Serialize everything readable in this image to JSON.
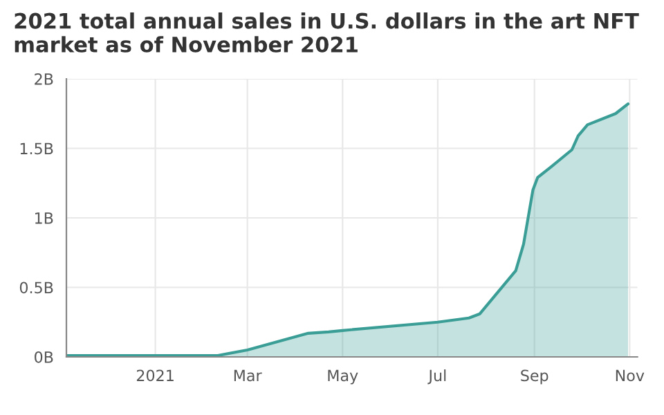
{
  "chart_data": {
    "type": "area",
    "title": "2021 total annual sales in U.S. dollars in the art NFT market as of November 2021",
    "x": [
      "2020-11-05",
      "2020-12-01",
      "2021-01-01",
      "2021-02-10",
      "2021-03-01",
      "2021-04-09",
      "2021-04-22",
      "2021-05-01",
      "2021-07-01",
      "2021-07-21",
      "2021-07-28",
      "2021-08-20",
      "2021-08-25",
      "2021-08-31",
      "2021-09-03",
      "2021-09-12",
      "2021-09-25",
      "2021-09-29",
      "2021-10-05",
      "2021-10-23",
      "2021-10-31"
    ],
    "series": [
      {
        "color": "#3a9e96",
        "values": [
          0.01,
          0.01,
          0.01,
          0.01,
          0.05,
          0.17,
          0.18,
          0.19,
          0.25,
          0.28,
          0.31,
          0.62,
          0.81,
          1.2,
          1.29,
          1.37,
          1.49,
          1.59,
          1.67,
          1.75,
          1.82
        ]
      }
    ],
    "xlim": [
      "2020-11-05",
      "2021-11-06"
    ],
    "xticks": [
      {
        "value": "2021-01-01",
        "label": "2021"
      },
      {
        "value": "2021-03-01",
        "label": "Mar"
      },
      {
        "value": "2021-05-01",
        "label": "May"
      },
      {
        "value": "2021-07-01",
        "label": "Jul"
      },
      {
        "value": "2021-09-01",
        "label": "Sep"
      },
      {
        "value": "2021-11-01",
        "label": "Nov"
      }
    ],
    "ylim": [
      0,
      2
    ],
    "yticks": [
      {
        "value": 0,
        "label": "0B"
      },
      {
        "value": 0.5,
        "label": "0.5B"
      },
      {
        "value": 1,
        "label": "1B"
      },
      {
        "value": 1.5,
        "label": "1.5B"
      },
      {
        "value": 2,
        "label": "2B"
      }
    ],
    "grid": true,
    "legend": false
  }
}
